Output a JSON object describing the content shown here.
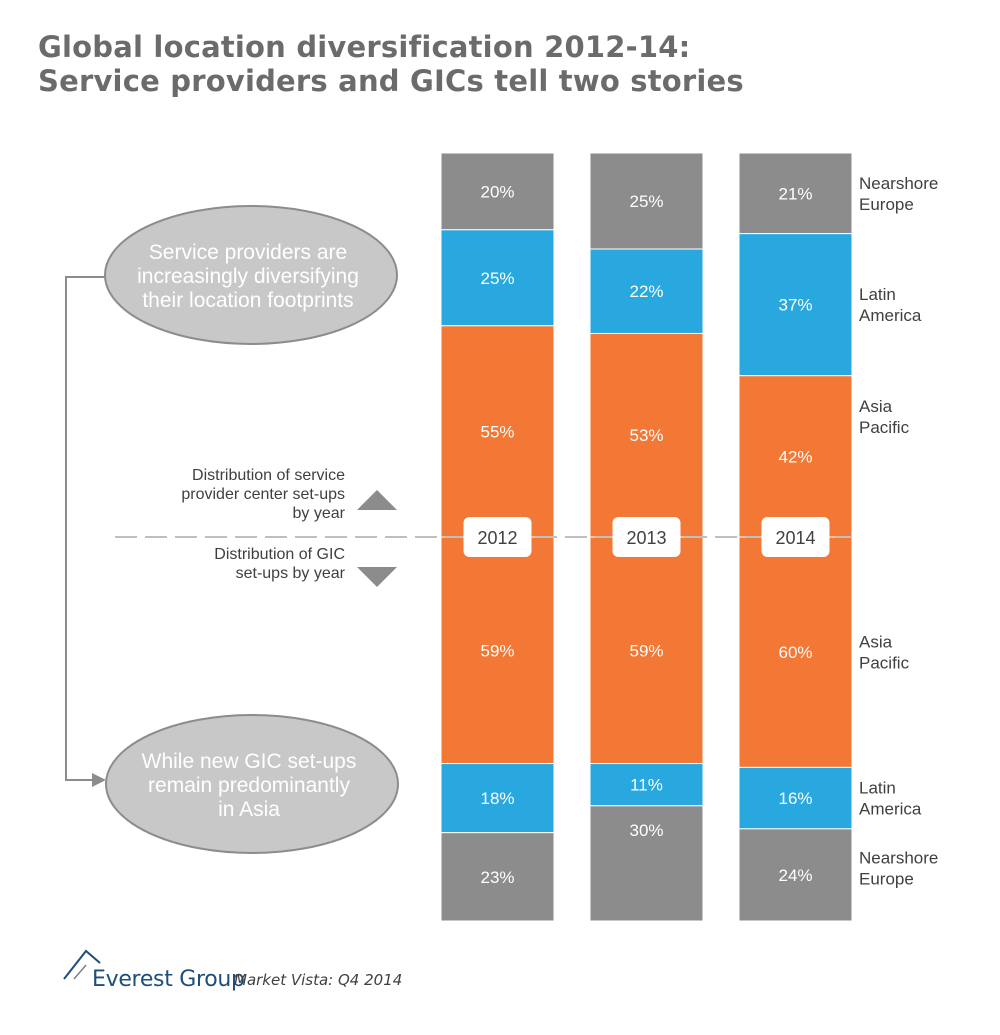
{
  "title": {
    "line1": "Global location diversification 2012-14:",
    "line2": "Service providers and GICs tell two stories"
  },
  "chart_data": {
    "type": "bar",
    "stacked": true,
    "years": [
      "2012",
      "2013",
      "2014"
    ],
    "service_providers": {
      "caption": [
        "Distribution of service",
        "provider center set-ups",
        "by year"
      ],
      "segments": [
        {
          "name": "Nearshore Europe",
          "label_lines": [
            "Nearshore",
            "Europe"
          ],
          "color": "#8c8c8c",
          "values": [
            20,
            25,
            21
          ]
        },
        {
          "name": "Latin America",
          "label_lines": [
            "Latin",
            "America"
          ],
          "color": "#29a8e0",
          "values": [
            25,
            22,
            37
          ]
        },
        {
          "name": "Asia Pacific",
          "label_lines": [
            "Asia",
            "Pacific"
          ],
          "color": "#f37735",
          "values": [
            55,
            53,
            42
          ]
        }
      ]
    },
    "gics": {
      "caption": [
        "Distribution of GIC",
        "set-ups by year"
      ],
      "segments": [
        {
          "name": "Asia Pacific",
          "label_lines": [
            "Asia",
            "Pacific"
          ],
          "color": "#f37735",
          "values": [
            59,
            59,
            60
          ]
        },
        {
          "name": "Latin America",
          "label_lines": [
            "Latin",
            "America"
          ],
          "color": "#29a8e0",
          "values": [
            18,
            11,
            16
          ]
        },
        {
          "name": "Nearshore Europe",
          "label_lines": [
            "Nearshore",
            "Europe"
          ],
          "color": "#8c8c8c",
          "values": [
            23,
            30,
            24
          ]
        }
      ]
    },
    "callouts": {
      "service_providers": [
        "Service providers are",
        "increasingly diversifying",
        "their location footprints"
      ],
      "gics": [
        "While new GIC set-ups",
        "remain predominantly",
        "in Asia"
      ]
    },
    "value_suffix": "%"
  },
  "footer": {
    "brand": "Everest Group",
    "subtitle": "Market Vista: Q4 2014"
  }
}
